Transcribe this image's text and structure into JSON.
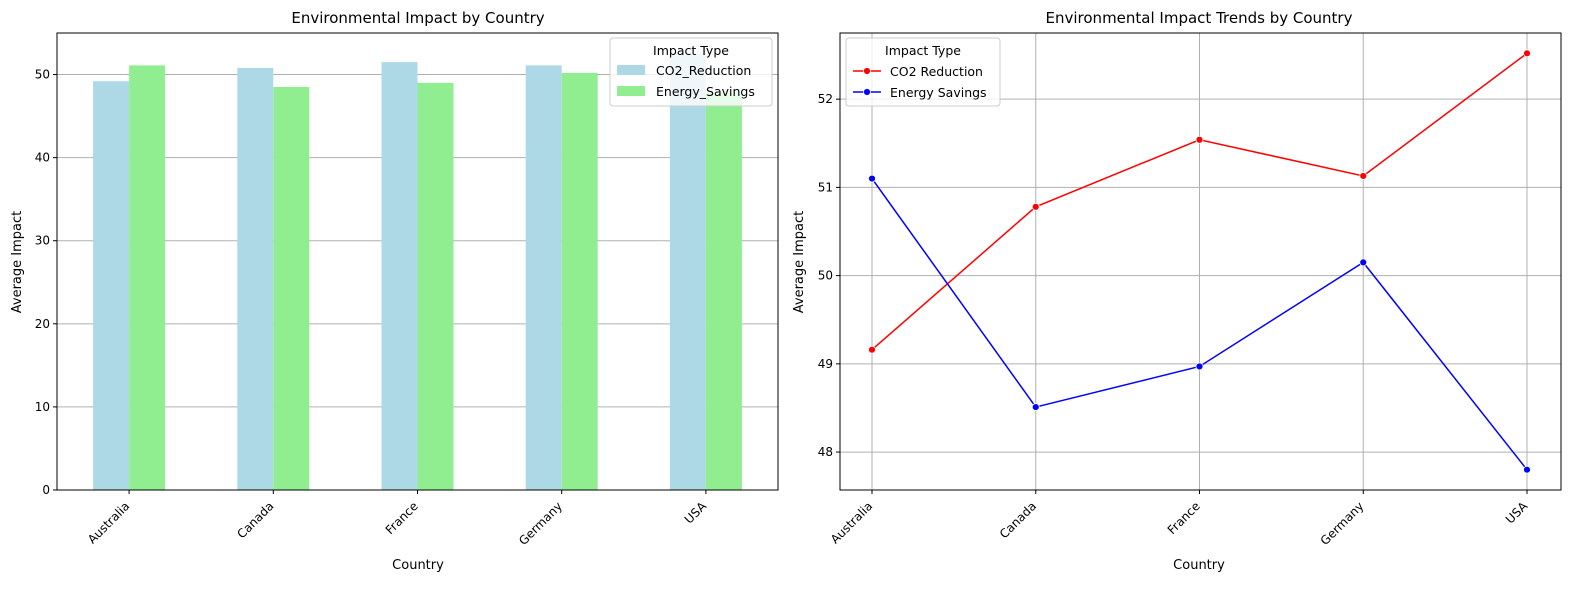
{
  "chart_data": [
    {
      "type": "bar",
      "title": "Environmental Impact by Country",
      "xlabel": "Country",
      "ylabel": "Average Impact",
      "categories": [
        "Australia",
        "Canada",
        "France",
        "Germany",
        "USA"
      ],
      "series": [
        {
          "name": "CO2_Reduction",
          "values": [
            49.2,
            50.8,
            51.5,
            51.1,
            52.5
          ],
          "color": "#add8e6"
        },
        {
          "name": "Energy_Savings",
          "values": [
            51.1,
            48.5,
            49.0,
            50.2,
            47.8
          ],
          "color": "#90ee90"
        }
      ],
      "ylim": [
        0,
        55
      ],
      "yticks": [
        0,
        10,
        20,
        30,
        40,
        50
      ],
      "grid": "y",
      "legend": {
        "title": "Impact Type",
        "position": "top-right"
      }
    },
    {
      "type": "line",
      "title": "Environmental Impact Trends by Country",
      "xlabel": "Country",
      "ylabel": "Average Impact",
      "categories": [
        "Australia",
        "Canada",
        "France",
        "Germany",
        "USA"
      ],
      "series": [
        {
          "name": "CO2 Reduction",
          "values": [
            49.16,
            50.78,
            51.54,
            51.13,
            52.52
          ],
          "color": "#ff0000"
        },
        {
          "name": "Energy Savings",
          "values": [
            51.1,
            48.51,
            48.97,
            50.15,
            47.8
          ],
          "color": "#0000ff"
        }
      ],
      "ylim": [
        47.57,
        52.75
      ],
      "yticks": [
        48,
        49,
        50,
        51,
        52
      ],
      "grid": "both",
      "legend": {
        "title": "Impact Type",
        "position": "top-left"
      }
    }
  ]
}
